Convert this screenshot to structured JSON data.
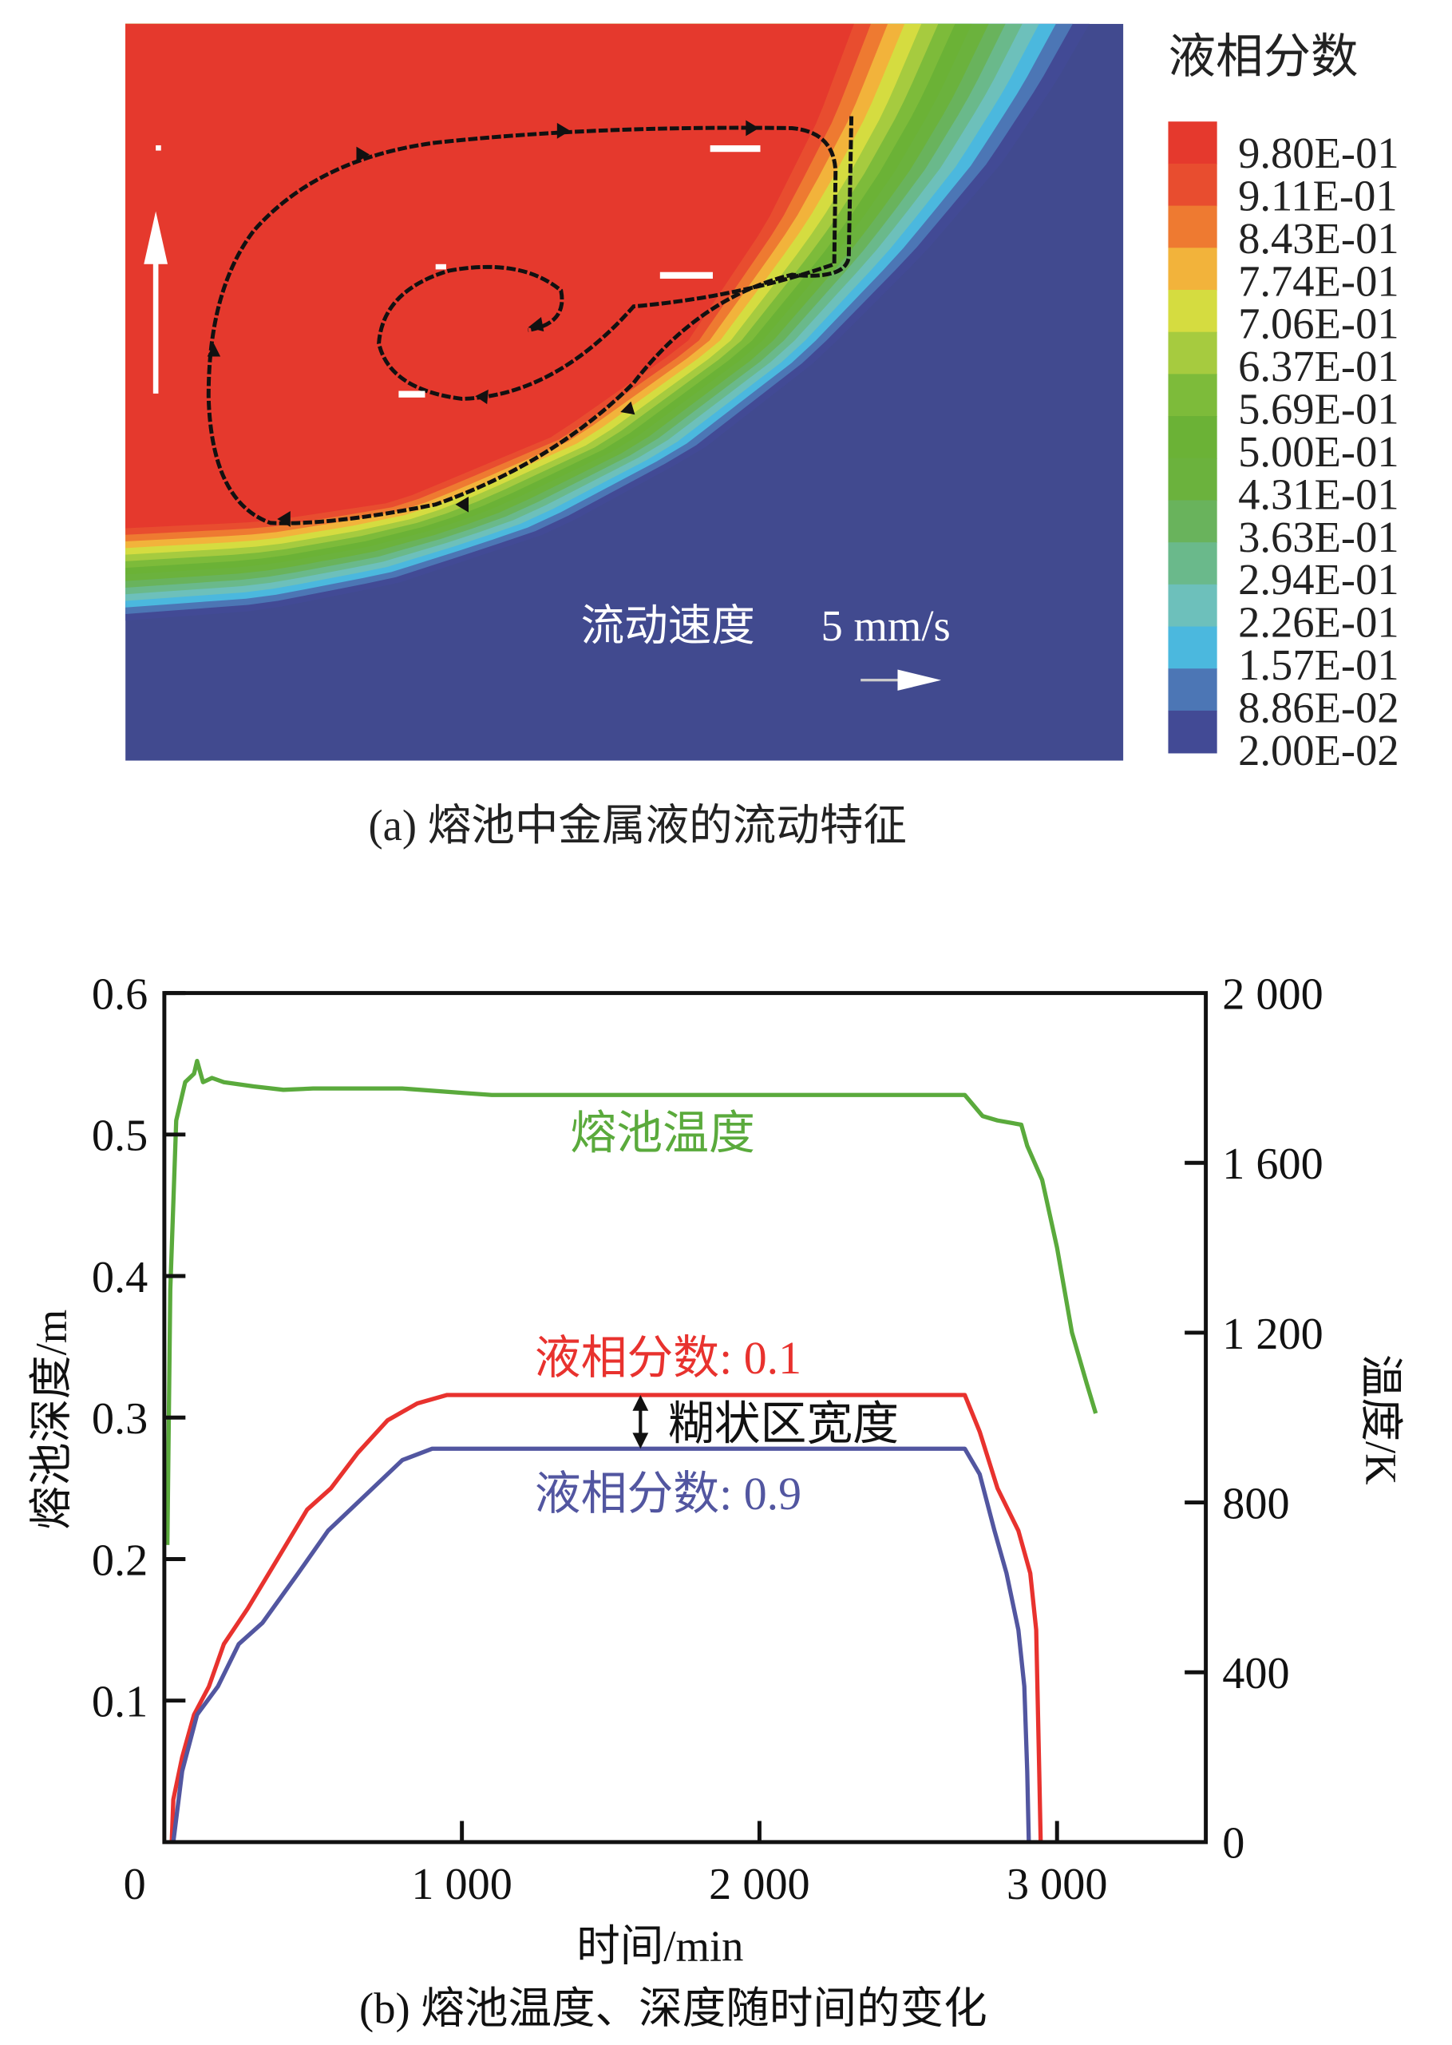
{
  "figure_a": {
    "caption": "(a) 熔池中金属液的流动特征",
    "legend_title": "液相分数",
    "legend_values": [
      "9.80E-01",
      "9.11E-01",
      "8.43E-01",
      "7.74E-01",
      "7.06E-01",
      "6.37E-01",
      "5.69E-01",
      "5.00E-01",
      "4.31E-01",
      "3.63E-01",
      "2.94E-01",
      "2.26E-01",
      "1.57E-01",
      "8.86E-02",
      "2.00E-02"
    ],
    "band_colors": [
      "#e5392d",
      "#e84d2f",
      "#ee7a31",
      "#f2b33b",
      "#d5dc40",
      "#a6cb3f",
      "#7dbb3a",
      "#6bb236",
      "#6bb23d",
      "#69b35c",
      "#6ab98b",
      "#6dc0bb",
      "#4bb8de",
      "#4c76b5",
      "#424a95"
    ],
    "background_color": "#414a8f",
    "velocity_label": "流动速度",
    "velocity_scale": "5 mm/s"
  },
  "chart_data": {
    "type": "line",
    "caption": "(b) 熔池温度、深度随时间的变化",
    "xlabel": "时间/min",
    "ylabel_left": "熔池深度/m",
    "ylabel_right": "温度/K",
    "xlim": [
      0,
      3500
    ],
    "ylim_left": [
      0,
      0.6
    ],
    "ylim_right": [
      0,
      2000
    ],
    "x_ticks": [
      "0",
      "1 000",
      "2 000",
      "3 000"
    ],
    "x_tick_values": [
      0,
      1000,
      2000,
      3000
    ],
    "y_left_ticks": [
      "0.1",
      "0.2",
      "0.3",
      "0.4",
      "0.5",
      "0.6"
    ],
    "y_left_tick_values": [
      0.1,
      0.2,
      0.3,
      0.4,
      0.5,
      0.6
    ],
    "y_right_ticks": [
      "0",
      "400",
      "800",
      "1 200",
      "1 600",
      "2 000"
    ],
    "y_right_tick_values": [
      0,
      400,
      800,
      1200,
      1600,
      2000
    ],
    "grid": false,
    "series": [
      {
        "name": "熔池温度",
        "axis": "right",
        "color": "#5aaa3c",
        "points": [
          [
            10,
            700
          ],
          [
            20,
            1300
          ],
          [
            40,
            1700
          ],
          [
            70,
            1790
          ],
          [
            100,
            1810
          ],
          [
            110,
            1840
          ],
          [
            130,
            1790
          ],
          [
            160,
            1800
          ],
          [
            200,
            1790
          ],
          [
            300,
            1780
          ],
          [
            400,
            1772
          ],
          [
            500,
            1775
          ],
          [
            800,
            1775
          ],
          [
            1000,
            1765
          ],
          [
            1100,
            1760
          ],
          [
            2690,
            1760
          ],
          [
            2750,
            1710
          ],
          [
            2800,
            1700
          ],
          [
            2880,
            1690
          ],
          [
            2900,
            1640
          ],
          [
            2950,
            1560
          ],
          [
            3000,
            1400
          ],
          [
            3050,
            1200
          ],
          [
            3100,
            1080
          ],
          [
            3130,
            1010
          ]
        ]
      },
      {
        "name": "液相分数: 0.1",
        "axis": "left",
        "color": "#e8322e",
        "points": [
          [
            25,
            0
          ],
          [
            30,
            0.03
          ],
          [
            60,
            0.06
          ],
          [
            100,
            0.09
          ],
          [
            150,
            0.11
          ],
          [
            200,
            0.14
          ],
          [
            280,
            0.165
          ],
          [
            380,
            0.2
          ],
          [
            480,
            0.235
          ],
          [
            560,
            0.25
          ],
          [
            650,
            0.275
          ],
          [
            750,
            0.298
          ],
          [
            850,
            0.31
          ],
          [
            950,
            0.316
          ],
          [
            2690,
            0.316
          ],
          [
            2740,
            0.29
          ],
          [
            2800,
            0.25
          ],
          [
            2870,
            0.22
          ],
          [
            2910,
            0.19
          ],
          [
            2930,
            0.15
          ],
          [
            2940,
            0.05
          ],
          [
            2945,
            0
          ]
        ]
      },
      {
        "name": "液相分数: 0.9",
        "axis": "left",
        "color": "#5256a0",
        "points": [
          [
            30,
            0
          ],
          [
            60,
            0.05
          ],
          [
            110,
            0.09
          ],
          [
            180,
            0.11
          ],
          [
            250,
            0.14
          ],
          [
            330,
            0.155
          ],
          [
            450,
            0.19
          ],
          [
            550,
            0.22
          ],
          [
            700,
            0.25
          ],
          [
            800,
            0.27
          ],
          [
            900,
            0.278
          ],
          [
            2690,
            0.278
          ],
          [
            2740,
            0.26
          ],
          [
            2790,
            0.22
          ],
          [
            2830,
            0.19
          ],
          [
            2870,
            0.15
          ],
          [
            2890,
            0.11
          ],
          [
            2900,
            0.05
          ],
          [
            2905,
            0
          ]
        ]
      }
    ],
    "annotation": {
      "text": "糊状区宽度",
      "x": 1600,
      "from": 0.278,
      "to": 0.316
    }
  }
}
